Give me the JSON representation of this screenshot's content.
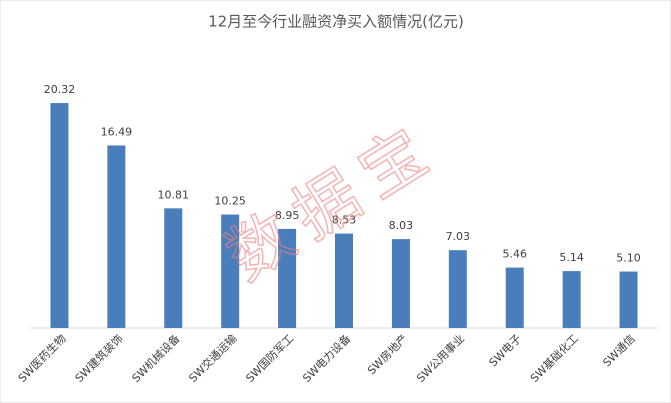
{
  "chart_data": {
    "type": "bar",
    "title": "12月至今行业融资净买入额情况(亿元)",
    "categories": [
      "SW医药生物",
      "SW建筑装饰",
      "SW机械设备",
      "SW交通运输",
      "SW国防军工",
      "SW电力设备",
      "SW房地产",
      "SW公用事业",
      "SW电子",
      "SW基础化工",
      "SW通信"
    ],
    "values": [
      20.32,
      16.49,
      10.81,
      10.25,
      8.95,
      8.53,
      8.03,
      7.03,
      5.46,
      5.14,
      5.1
    ],
    "value_labels": [
      "20.32",
      "16.49",
      "10.81",
      "10.25",
      "8.95",
      "8.53",
      "8.03",
      "7.03",
      "5.46",
      "5.14",
      "5.10"
    ],
    "color": "#4a7ebb",
    "watermark": "数据宝"
  }
}
